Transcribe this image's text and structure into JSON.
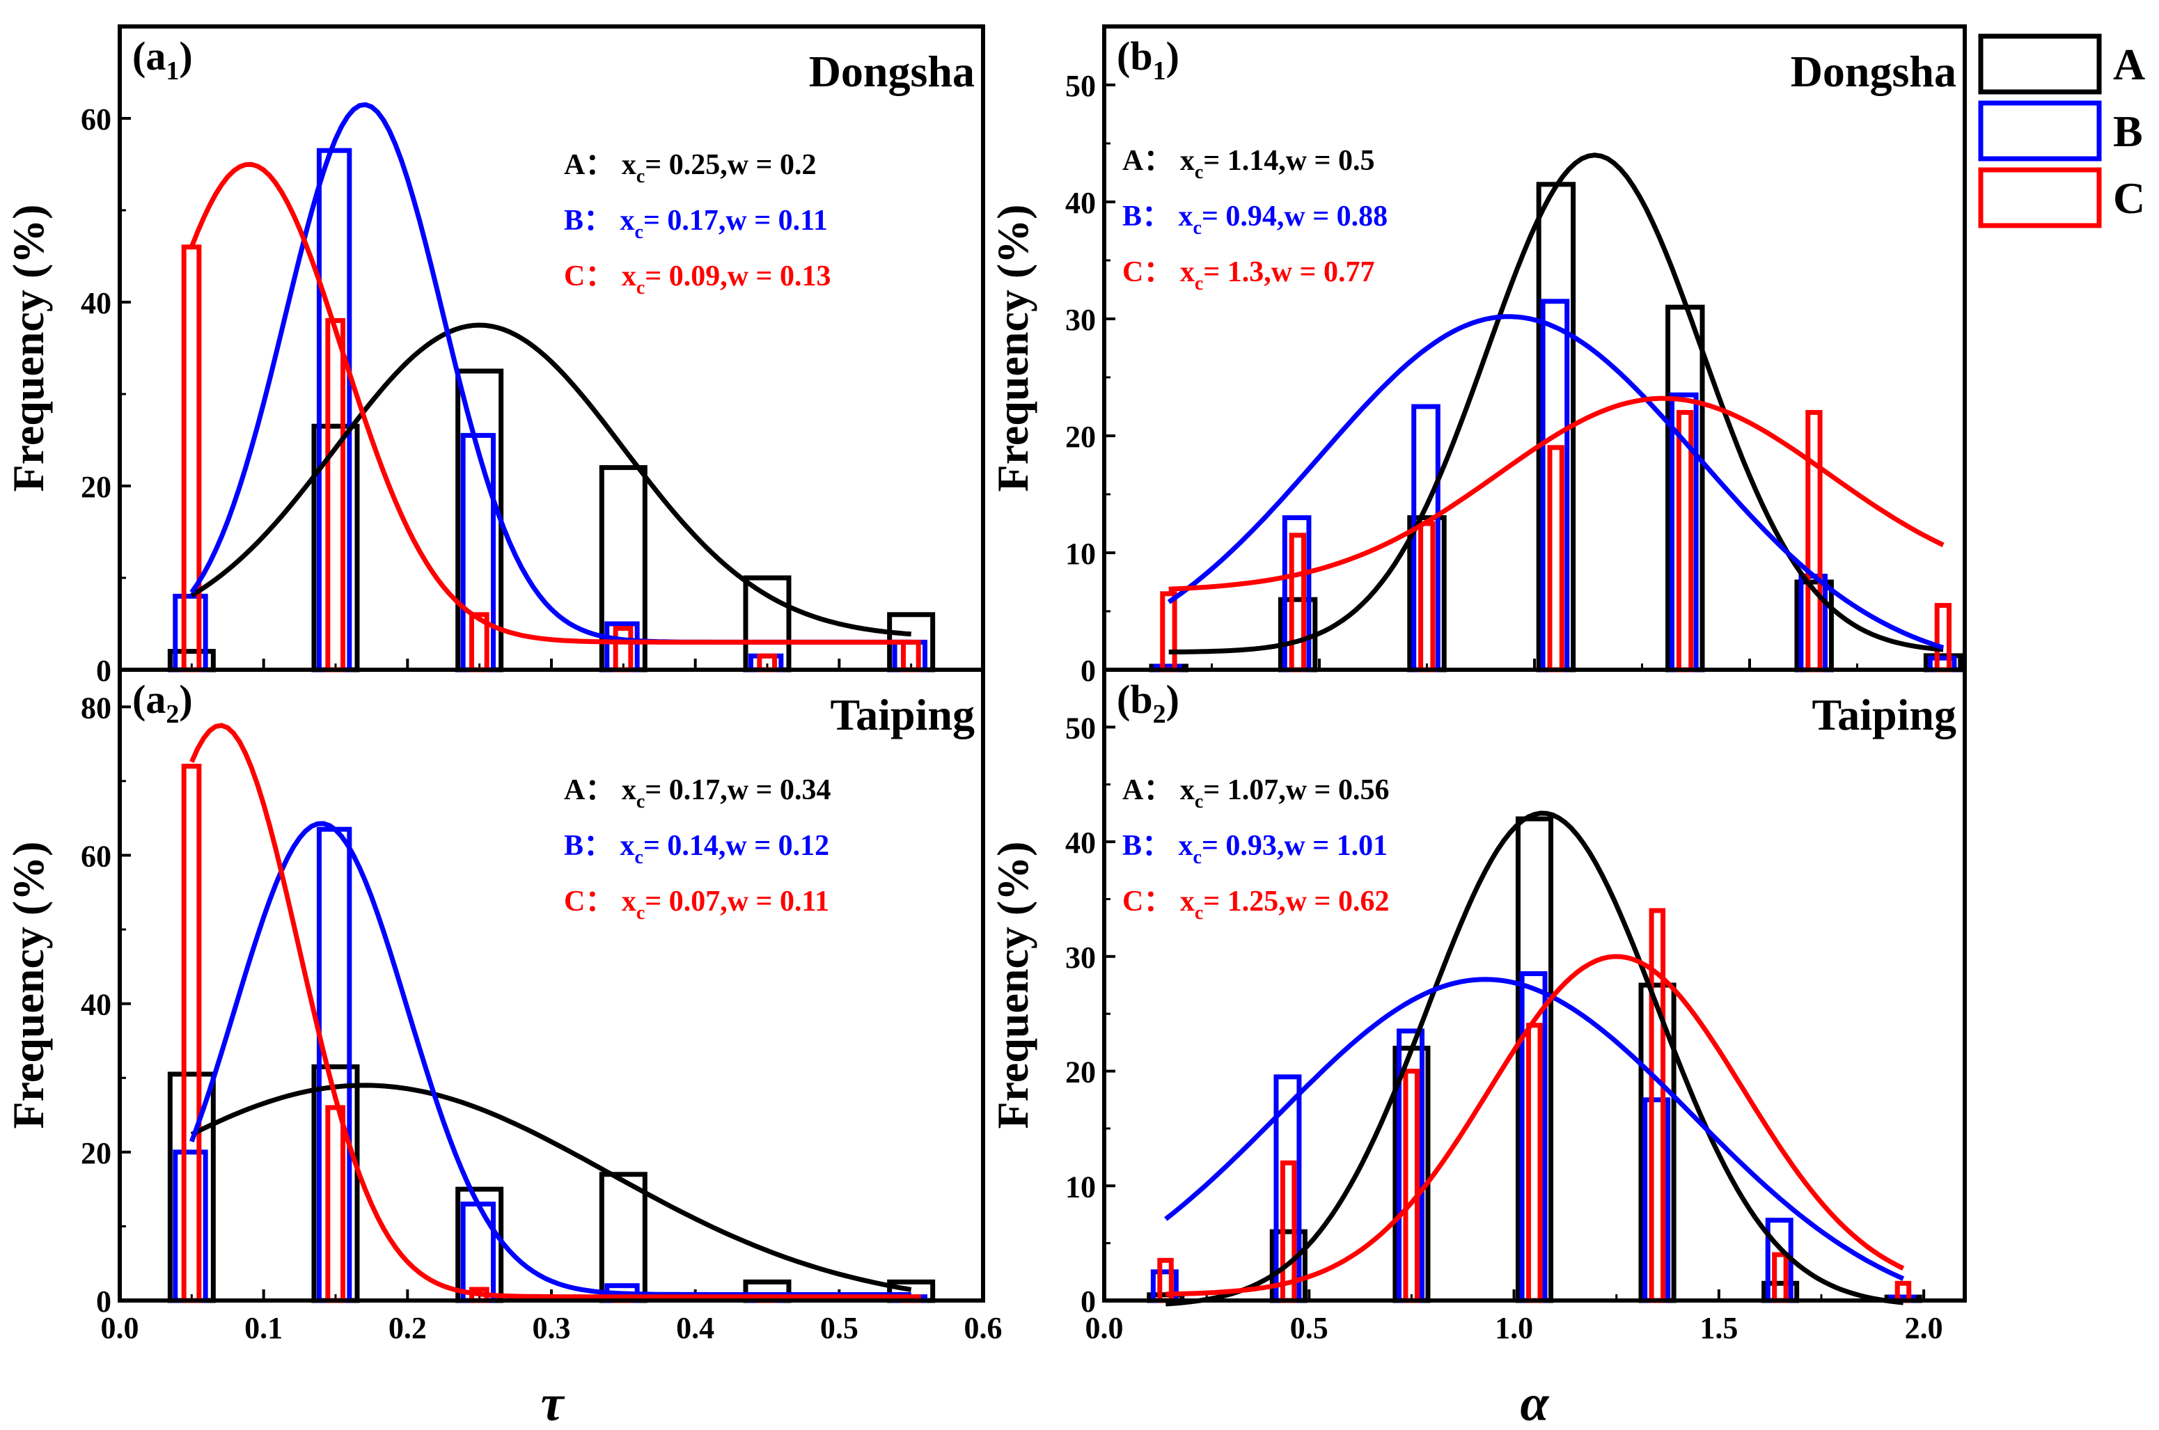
{
  "colors": {
    "A": "#000000",
    "B": "#0000ff",
    "C": "#ff0000"
  },
  "legend": {
    "position": "top-right outside",
    "entries": [
      "A",
      "B",
      "C"
    ]
  },
  "shared_axes": {
    "tau_xlabel": "τ",
    "alpha_xlabel": "α",
    "ylabel": "Frequency (%)"
  },
  "chart_data": [
    {
      "id": "a1",
      "type": "bar",
      "panel_label": {
        "base": "(a",
        "sub": "1",
        "close": ")"
      },
      "title": "Dongsha",
      "xlabel": "τ",
      "ylabel": "Frequency (%)",
      "xlim": [
        0.0,
        0.6
      ],
      "ylim": [
        0,
        70
      ],
      "xticks": [],
      "yticks": [
        0,
        20,
        40,
        60
      ],
      "bar_width": 0.03,
      "series": [
        {
          "name": "A",
          "x": [
            0.05,
            0.15,
            0.25,
            0.35,
            0.45,
            0.55
          ],
          "values": [
            2,
            26.5,
            32.5,
            22,
            10,
            6
          ],
          "fit": {
            "xc": 0.25,
            "w": 0.2,
            "A": 34,
            "y0": 3.5,
            "range": [
              0.05,
              0.55
            ]
          }
        },
        {
          "name": "B",
          "x": [
            0.05,
            0.15,
            0.25,
            0.35,
            0.45,
            0.55
          ],
          "values": [
            8,
            56.5,
            25.5,
            5,
            1.5,
            3
          ],
          "fit": {
            "xc": 0.17,
            "w": 0.11,
            "A": 58.5,
            "y0": 3,
            "range": [
              0.05,
              0.55
            ]
          }
        },
        {
          "name": "C",
          "x": [
            0.05,
            0.15,
            0.25,
            0.35,
            0.45,
            0.55
          ],
          "values": [
            46,
            38,
            6,
            4.5,
            1.5,
            3
          ],
          "fit": {
            "xc": 0.09,
            "w": 0.13,
            "A": 52,
            "y0": 3,
            "range": [
              0.05,
              0.55
            ]
          }
        }
      ],
      "annotations": [
        {
          "series": "A",
          "label": "A：",
          "x": "x",
          "sub": "c",
          "rest": "= 0.25,w = 0.2"
        },
        {
          "series": "B",
          "label": "B：",
          "x": "x",
          "sub": "c",
          "rest": "= 0.17,w = 0.11"
        },
        {
          "series": "C",
          "label": "C：",
          "x": "x",
          "sub": "c",
          "rest": "= 0.09,w = 0.13"
        }
      ]
    },
    {
      "id": "b1",
      "type": "bar",
      "panel_label": {
        "base": "(b",
        "sub": "1",
        "close": ")"
      },
      "title": "Dongsha",
      "xlabel": "α",
      "ylabel": "Frequency (%)",
      "xlim": [
        0.0,
        2.0
      ],
      "ylim": [
        0,
        55
      ],
      "xticks": [],
      "yticks": [
        0,
        10,
        20,
        30,
        40,
        50
      ],
      "bar_width": 0.08,
      "series": [
        {
          "name": "A",
          "x": [
            0.15,
            0.45,
            0.75,
            1.05,
            1.35,
            1.65,
            1.95
          ],
          "values": [
            0.3,
            6,
            13,
            41.5,
            31,
            7.5,
            1.2
          ],
          "fit": {
            "xc": 1.14,
            "w": 0.5,
            "A": 42.5,
            "y0": 1.5,
            "range": [
              0.15,
              1.95
            ]
          }
        },
        {
          "name": "B",
          "x": [
            0.15,
            0.45,
            0.75,
            1.05,
            1.35,
            1.65,
            1.95
          ],
          "values": [
            0,
            13,
            22.5,
            31.5,
            23.5,
            8,
            1
          ],
          "fit": {
            "xc": 0.94,
            "w": 0.88,
            "A": 30.5,
            "y0": -0.3,
            "range": [
              0.15,
              1.95
            ]
          }
        },
        {
          "name": "C",
          "x": [
            0.15,
            0.45,
            0.75,
            1.05,
            1.35,
            1.65,
            1.95
          ],
          "values": [
            6.5,
            11.5,
            12.5,
            19,
            22,
            22,
            5.5
          ],
          "fit": {
            "xc": 1.3,
            "w": 0.77,
            "A": 16.5,
            "y0": 6.7,
            "range": [
              0.15,
              1.95
            ]
          }
        }
      ],
      "annotations": [
        {
          "series": "A",
          "label": "A：",
          "x": "x",
          "sub": "c",
          "rest": "= 1.14,w = 0.5"
        },
        {
          "series": "B",
          "label": "B：",
          "x": "x",
          "sub": "c",
          "rest": "= 0.94,w = 0.88"
        },
        {
          "series": "C",
          "label": "C：",
          "x": "x",
          "sub": "c",
          "rest": "= 1.3,w = 0.77"
        }
      ]
    },
    {
      "id": "a2",
      "type": "bar",
      "panel_label": {
        "base": "(a",
        "sub": "2",
        "close": ")"
      },
      "title": "Taiping",
      "xlabel": "τ",
      "ylabel": "Frequency (%)",
      "xlim": [
        0.0,
        0.6
      ],
      "ylim": [
        0,
        85
      ],
      "xticks": [
        "0.0",
        "0.1",
        "0.2",
        "0.3",
        "0.4",
        "0.5",
        "0.6"
      ],
      "yticks": [
        0,
        20,
        40,
        60,
        80
      ],
      "bar_width": 0.03,
      "series": [
        {
          "name": "A",
          "x": [
            0.05,
            0.15,
            0.25,
            0.35,
            0.45,
            0.55
          ],
          "values": [
            30.5,
            31.5,
            15,
            17,
            2.5,
            2.5
          ],
          "fit": {
            "xc": 0.17,
            "w": 0.34,
            "A": 30,
            "y0": -1,
            "range": [
              0.05,
              0.55
            ]
          }
        },
        {
          "name": "B",
          "x": [
            0.05,
            0.15,
            0.25,
            0.35,
            0.45,
            0.55
          ],
          "values": [
            20,
            63.5,
            13,
            2,
            0.5,
            0.5
          ],
          "fit": {
            "xc": 0.14,
            "w": 0.12,
            "A": 63.5,
            "y0": 0.8,
            "range": [
              0.05,
              0.55
            ]
          }
        },
        {
          "name": "C",
          "x": [
            0.05,
            0.15,
            0.25,
            0.35,
            0.45,
            0.55
          ],
          "values": [
            72,
            26,
            1.5,
            0.5,
            0.5,
            0.5
          ],
          "fit": {
            "xc": 0.07,
            "w": 0.11,
            "A": 77,
            "y0": 0.5,
            "range": [
              0.05,
              0.55
            ]
          }
        }
      ],
      "annotations": [
        {
          "series": "A",
          "label": "A：",
          "x": "x",
          "sub": "c",
          "rest": "= 0.17,w = 0.34"
        },
        {
          "series": "B",
          "label": "B：",
          "x": "x",
          "sub": "c",
          "rest": "= 0.14,w = 0.12"
        },
        {
          "series": "C",
          "label": "C：",
          "x": "x",
          "sub": "c",
          "rest": "= 0.07,w = 0.11"
        }
      ]
    },
    {
      "id": "b2",
      "type": "bar",
      "panel_label": {
        "base": "(b",
        "sub": "2",
        "close": ")"
      },
      "title": "Taiping",
      "xlabel": "α",
      "ylabel": "Frequency (%)",
      "xlim": [
        0.0,
        2.1
      ],
      "ylim": [
        0,
        55
      ],
      "xticks": [
        "0.0",
        "0.5",
        "1.0",
        "1.5",
        "2.0"
      ],
      "yticks": [
        0,
        10,
        20,
        30,
        40,
        50
      ],
      "bar_width": 0.08,
      "series": [
        {
          "name": "A",
          "x": [
            0.15,
            0.45,
            0.75,
            1.05,
            1.35,
            1.65,
            1.95
          ],
          "values": [
            0.5,
            6,
            22,
            42,
            27.5,
            1.5,
            0
          ],
          "fit": {
            "xc": 1.07,
            "w": 0.56,
            "A": 43,
            "y0": -0.5,
            "range": [
              0.15,
              1.95
            ]
          }
        },
        {
          "name": "B",
          "x": [
            0.15,
            0.45,
            0.75,
            1.05,
            1.35,
            1.65,
            1.95
          ],
          "values": [
            2.5,
            19.5,
            23.5,
            28.5,
            17.5,
            7,
            0
          ],
          "fit": {
            "xc": 0.93,
            "w": 1.01,
            "A": 30,
            "y0": -2,
            "range": [
              0.15,
              1.95
            ]
          }
        },
        {
          "name": "C",
          "x": [
            0.15,
            0.45,
            0.75,
            1.05,
            1.35,
            1.65,
            1.95
          ],
          "values": [
            3.5,
            12,
            20,
            24,
            34,
            4,
            1.5
          ],
          "fit": {
            "xc": 1.25,
            "w": 0.62,
            "A": 29.5,
            "y0": 0.5,
            "range": [
              0.15,
              1.95
            ]
          }
        }
      ],
      "annotations": [
        {
          "series": "A",
          "label": "A：",
          "x": "x",
          "sub": "c",
          "rest": "= 1.07,w = 0.56"
        },
        {
          "series": "B",
          "label": "B：",
          "x": "x",
          "sub": "c",
          "rest": "= 0.93,w = 1.01"
        },
        {
          "series": "C",
          "label": "C：",
          "x": "x",
          "sub": "c",
          "rest": "= 1.25,w = 0.62"
        }
      ]
    }
  ]
}
